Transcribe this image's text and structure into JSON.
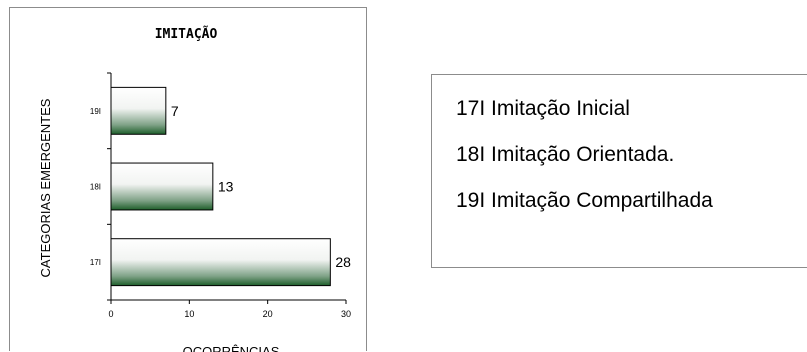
{
  "chart_data": {
    "type": "bar",
    "orientation": "horizontal",
    "title": "IMITAÇÃO",
    "xlabel": "OCORRÊNCIAS",
    "ylabel": "CATEGORIAS EMERGENTES",
    "categories": [
      "19I",
      "18I",
      "17I"
    ],
    "values": [
      7,
      13,
      28
    ],
    "xlim": [
      0,
      30
    ],
    "x_ticks": [
      "0",
      "10",
      "20",
      "30"
    ],
    "grid": false,
    "bar_fill": "gradient white to dark green",
    "colors": {
      "bar_dark": "#1d5e2a",
      "bar_light": "#ffffff",
      "axis": "#000000",
      "frame": "#8c8c8c"
    }
  },
  "legend": {
    "items": [
      "17I Imitação Inicial",
      "18I Imitação Orientada.",
      "19I Imitação Compartilhada"
    ]
  }
}
